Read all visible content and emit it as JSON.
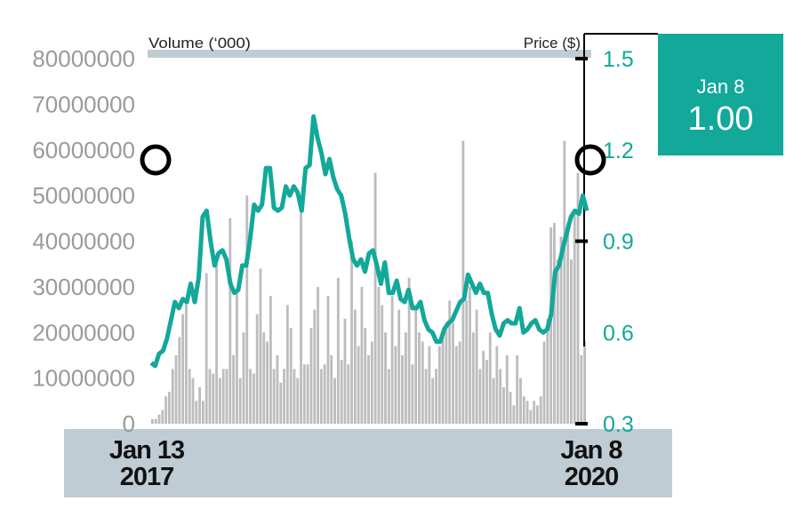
{
  "chart_data": {
    "type": "bar+line",
    "left_axis_label": "Volume (‘000)",
    "right_axis_label": "Price ($)",
    "left_ticks": [
      "0",
      "10000000",
      "20000000",
      "30000000",
      "40000000",
      "50000000",
      "60000000",
      "70000000",
      "80000000"
    ],
    "left_ylim": [
      0,
      80000000
    ],
    "right_ticks": [
      "0.3",
      "0.6",
      "0.9",
      "1.2",
      "1.5"
    ],
    "right_ylim": [
      0.3,
      1.5
    ],
    "x_start": {
      "date": "Jan 13",
      "year": "2017"
    },
    "x_end": {
      "date": "Jan 8",
      "year": "2020"
    },
    "volume_millions": [
      1,
      1,
      2,
      3,
      6,
      7,
      12,
      15,
      19,
      24,
      27,
      12,
      10,
      5,
      8,
      5,
      33,
      12,
      11,
      35,
      10,
      12,
      12,
      45,
      15,
      29,
      10,
      20,
      50,
      12,
      11,
      24,
      34,
      20,
      18,
      28,
      12,
      15,
      9,
      12,
      26,
      21,
      12,
      10,
      50,
      13,
      13,
      21,
      25,
      30,
      12,
      13,
      28,
      15,
      10,
      32,
      14,
      23,
      13,
      40,
      25,
      17,
      30,
      21,
      15,
      18,
      55,
      30,
      26,
      20,
      12,
      28,
      17,
      25,
      15,
      20,
      32,
      13,
      26,
      20,
      18,
      12,
      17,
      10,
      12,
      17,
      20,
      22,
      27,
      22,
      17,
      18,
      62,
      27,
      30,
      20,
      25,
      12,
      16,
      14,
      20,
      10,
      17,
      12,
      8,
      15,
      7,
      4,
      15,
      10,
      6,
      5,
      3,
      5,
      4,
      6,
      18,
      23,
      43,
      44,
      36,
      41,
      62,
      44,
      36,
      47,
      55,
      15,
      18
    ],
    "price": [
      0.5,
      0.49,
      0.53,
      0.54,
      0.58,
      0.64,
      0.7,
      0.68,
      0.71,
      0.7,
      0.76,
      0.7,
      0.78,
      0.98,
      1.0,
      0.9,
      0.82,
      0.86,
      0.87,
      0.84,
      0.76,
      0.73,
      0.74,
      0.82,
      0.82,
      0.91,
      1.02,
      1.0,
      1.02,
      1.14,
      1.14,
      1.01,
      1.0,
      1.01,
      1.08,
      1.05,
      1.08,
      1.06,
      1.0,
      1.14,
      1.15,
      1.31,
      1.24,
      1.19,
      1.12,
      1.17,
      1.11,
      1.07,
      1.05,
      0.99,
      0.91,
      0.84,
      0.82,
      0.84,
      0.8,
      0.86,
      0.87,
      0.82,
      0.76,
      0.83,
      0.73,
      0.73,
      0.77,
      0.71,
      0.7,
      0.74,
      0.68,
      0.68,
      0.7,
      0.64,
      0.61,
      0.6,
      0.57,
      0.57,
      0.61,
      0.63,
      0.64,
      0.67,
      0.7,
      0.71,
      0.79,
      0.76,
      0.73,
      0.76,
      0.73,
      0.73,
      0.66,
      0.61,
      0.59,
      0.63,
      0.64,
      0.63,
      0.63,
      0.68,
      0.6,
      0.61,
      0.63,
      0.64,
      0.61,
      0.6,
      0.61,
      0.66,
      0.8,
      0.82,
      0.88,
      0.93,
      0.98,
      1.0,
      0.99,
      1.05,
      1.0
    ],
    "current": {
      "date": "Jan 8",
      "value": "1.00"
    },
    "colors": {
      "price": "#12a89a",
      "volume": "#bdbdbf",
      "band": "#c0ccd3"
    }
  }
}
